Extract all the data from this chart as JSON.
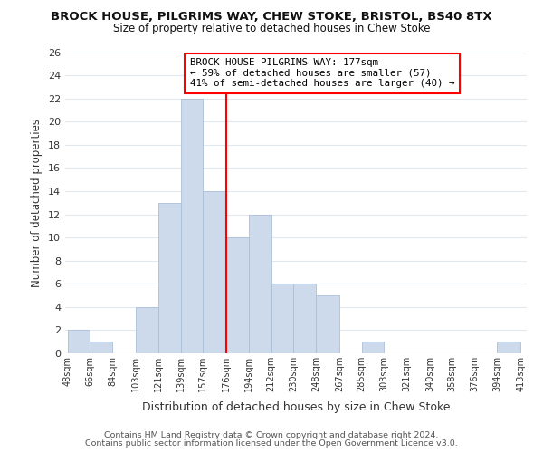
{
  "title": "BROCK HOUSE, PILGRIMS WAY, CHEW STOKE, BRISTOL, BS40 8TX",
  "subtitle": "Size of property relative to detached houses in Chew Stoke",
  "xlabel": "Distribution of detached houses by size in Chew Stoke",
  "ylabel": "Number of detached properties",
  "bar_color": "#cddaeb",
  "bar_edgecolor": "#aabfd8",
  "vline_x": 176,
  "vline_color": "red",
  "annotation_title": "BROCK HOUSE PILGRIMS WAY: 177sqm",
  "annotation_line1": "← 59% of detached houses are smaller (57)",
  "annotation_line2": "41% of semi-detached houses are larger (40) →",
  "annotation_box_edgecolor": "red",
  "footer1": "Contains HM Land Registry data © Crown copyright and database right 2024.",
  "footer2": "Contains public sector information licensed under the Open Government Licence v3.0.",
  "bin_edges": [
    48,
    66,
    84,
    103,
    121,
    139,
    157,
    176,
    194,
    212,
    230,
    248,
    267,
    285,
    303,
    321,
    340,
    358,
    376,
    394,
    413
  ],
  "bin_labels": [
    "48sqm",
    "66sqm",
    "84sqm",
    "103sqm",
    "121sqm",
    "139sqm",
    "157sqm",
    "176sqm",
    "194sqm",
    "212sqm",
    "230sqm",
    "248sqm",
    "267sqm",
    "285sqm",
    "303sqm",
    "321sqm",
    "340sqm",
    "358sqm",
    "376sqm",
    "394sqm",
    "413sqm"
  ],
  "counts": [
    2,
    1,
    0,
    4,
    13,
    22,
    14,
    10,
    12,
    6,
    6,
    5,
    0,
    1,
    0,
    0,
    0,
    0,
    0,
    1
  ],
  "ylim": [
    0,
    26
  ],
  "yticks": [
    0,
    2,
    4,
    6,
    8,
    10,
    12,
    14,
    16,
    18,
    20,
    22,
    24,
    26
  ],
  "background_color": "#ffffff",
  "grid_color": "#e0e8f0"
}
